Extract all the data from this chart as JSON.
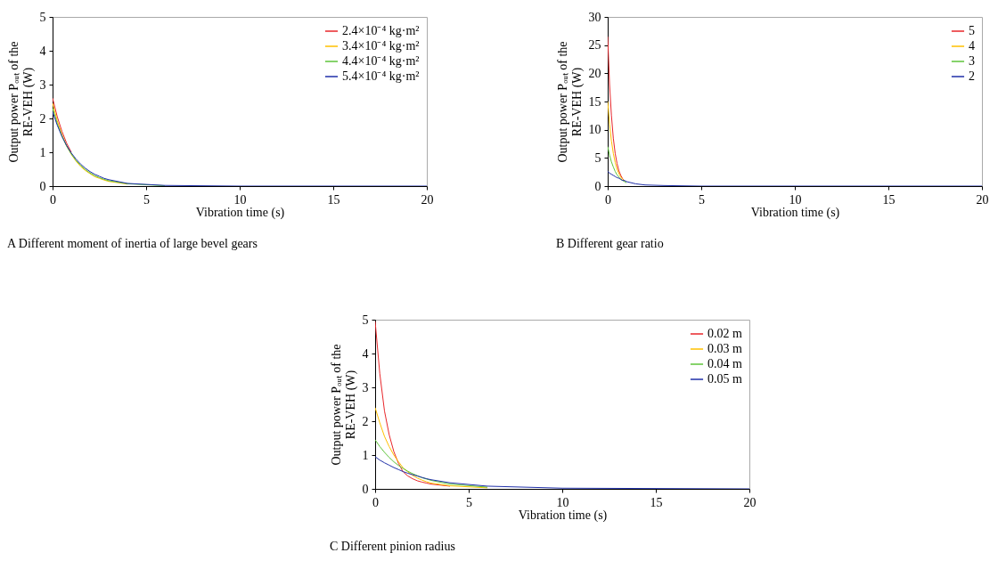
{
  "chart_data": [
    {
      "type": "line",
      "title": "A Different moment of inertia of large bevel gears",
      "xlabel": "Vibration time (s)",
      "ylabel": "Output power Pₒᵤₜ of the RE-VEH (W)",
      "xlim": [
        0,
        20
      ],
      "ylim": [
        0,
        5
      ],
      "xticks": [
        0,
        5,
        10,
        15,
        20
      ],
      "yticks": [
        0,
        1,
        2,
        3,
        4,
        5
      ],
      "grid": false,
      "legend": "top right",
      "series": [
        {
          "name": "2.4×10⁻⁴ kg·m²",
          "color": "#e8262a",
          "x": [
            0,
            0.25,
            0.5,
            0.75,
            1
          ],
          "values": [
            2.6,
            2.05,
            1.62,
            1.27,
            1.0
          ]
        },
        {
          "name": "3.4×10⁻⁴ kg·m²",
          "color": "#ffc000",
          "x": [
            0,
            0.25,
            0.5,
            0.75,
            1,
            1.25,
            1.5,
            1.75,
            2,
            2.25,
            2.5,
            2.75,
            3,
            4
          ],
          "values": [
            2.45,
            1.93,
            1.52,
            1.19,
            0.94,
            0.74,
            0.58,
            0.46,
            0.37,
            0.28,
            0.23,
            0.18,
            0.14,
            0.06
          ]
        },
        {
          "name": "4.4×10⁻⁴ kg·m²",
          "color": "#5ec43a",
          "x": [
            0,
            0.25,
            0.5,
            0.75,
            1,
            1.25,
            1.5,
            1.75,
            2,
            2.25,
            2.5,
            2.75,
            3,
            4,
            6
          ],
          "values": [
            2.3,
            1.85,
            1.48,
            1.18,
            0.95,
            0.76,
            0.61,
            0.49,
            0.39,
            0.31,
            0.25,
            0.2,
            0.16,
            0.07,
            0.01
          ]
        },
        {
          "name": "5.4×10⁻⁴ kg·m²",
          "color": "#1f2fa8",
          "x": [
            0,
            0.25,
            0.5,
            0.75,
            1,
            1.25,
            1.5,
            1.75,
            2,
            2.25,
            2.5,
            2.75,
            3,
            4,
            6,
            10,
            20
          ],
          "values": [
            2.2,
            1.8,
            1.47,
            1.2,
            0.98,
            0.8,
            0.65,
            0.53,
            0.43,
            0.35,
            0.29,
            0.23,
            0.19,
            0.08,
            0.02,
            0,
            0
          ]
        }
      ]
    },
    {
      "type": "line",
      "title": "B Different gear ratio",
      "xlabel": "Vibration time (s)",
      "ylabel": "Output power Pₒᵤₜ of the RE-VEH (W)",
      "xlim": [
        0,
        20
      ],
      "ylim": [
        0,
        30
      ],
      "xticks": [
        0,
        5,
        10,
        15,
        20
      ],
      "yticks": [
        0,
        5,
        10,
        15,
        20,
        25,
        30
      ],
      "grid": false,
      "legend": "top right",
      "series": [
        {
          "name": "5",
          "color": "#e8262a",
          "x": [
            0,
            0.1,
            0.2,
            0.3,
            0.4,
            0.5,
            0.6,
            0.7,
            0.8,
            0.9
          ],
          "values": [
            26.5,
            18,
            12.5,
            8.5,
            5.8,
            4,
            2.7,
            1.9,
            1.3,
            0.9
          ]
        },
        {
          "name": "4",
          "color": "#ffc000",
          "x": [
            0,
            0.1,
            0.2,
            0.3,
            0.4,
            0.5,
            0.6,
            0.7,
            0.8,
            0.9
          ],
          "values": [
            15,
            11,
            8,
            5.8,
            4.2,
            3,
            2.2,
            1.6,
            1.2,
            0.9
          ]
        },
        {
          "name": "3",
          "color": "#5ec43a",
          "x": [
            0,
            0.1,
            0.2,
            0.3,
            0.4,
            0.5,
            0.6,
            0.7,
            0.8,
            0.9,
            1.0
          ],
          "values": [
            7,
            5.5,
            4.3,
            3.4,
            2.6,
            2,
            1.6,
            1.2,
            1,
            0.8,
            0.6
          ]
        },
        {
          "name": "2",
          "color": "#1f2fa8",
          "x": [
            0,
            0.1,
            0.2,
            0.3,
            0.4,
            0.5,
            0.6,
            0.7,
            0.8,
            0.9,
            1.0,
            1.5,
            2,
            3,
            5,
            10,
            20
          ],
          "values": [
            2.6,
            2.3,
            2.1,
            1.9,
            1.7,
            1.5,
            1.4,
            1.2,
            1.0,
            1.0,
            0.8,
            0.4,
            0.2,
            0.1,
            0,
            0,
            0
          ]
        }
      ]
    },
    {
      "type": "line",
      "title": "C Different pinion radius",
      "xlabel": "Vibration time (s)",
      "ylabel": "Output power Pₒᵤₜ of the RE-VEH (W)",
      "xlim": [
        0,
        20
      ],
      "ylim": [
        0,
        5
      ],
      "xticks": [
        0,
        5,
        10,
        15,
        20
      ],
      "yticks": [
        0,
        1,
        2,
        3,
        4,
        5
      ],
      "grid": false,
      "legend": "top right",
      "series": [
        {
          "name": "0.02 m",
          "color": "#e8262a",
          "x": [
            0,
            0.25,
            0.5,
            0.75,
            1,
            1.25,
            1.5,
            1.75,
            2,
            2.25,
            2.5,
            2.75,
            3,
            4
          ],
          "values": [
            4.95,
            3.4,
            2.3,
            1.6,
            1.1,
            0.75,
            0.5,
            0.38,
            0.3,
            0.24,
            0.2,
            0.17,
            0.14,
            0.08
          ]
        },
        {
          "name": "0.03 m",
          "color": "#ffc000",
          "x": [
            0,
            0.25,
            0.5,
            0.75,
            1,
            1.25,
            1.5,
            1.75,
            2,
            2.25,
            2.5,
            2.75,
            3,
            4,
            6
          ],
          "values": [
            2.4,
            1.95,
            1.55,
            1.25,
            1.0,
            0.8,
            0.62,
            0.5,
            0.4,
            0.32,
            0.26,
            0.21,
            0.17,
            0.09,
            0.03
          ]
        },
        {
          "name": "0.04 m",
          "color": "#5ec43a",
          "x": [
            0,
            0.25,
            0.5,
            0.75,
            1,
            1.25,
            1.5,
            1.75,
            2,
            2.25,
            2.5,
            2.75,
            3,
            4,
            6
          ],
          "values": [
            1.45,
            1.25,
            1.08,
            0.93,
            0.8,
            0.69,
            0.6,
            0.52,
            0.45,
            0.39,
            0.33,
            0.29,
            0.25,
            0.14,
            0.05
          ]
        },
        {
          "name": "0.05 m",
          "color": "#1f2fa8",
          "x": [
            0,
            0.25,
            0.5,
            0.75,
            1,
            1.25,
            1.5,
            1.75,
            2,
            2.25,
            2.5,
            2.75,
            3,
            4,
            6,
            10,
            20
          ],
          "values": [
            0.95,
            0.85,
            0.77,
            0.7,
            0.63,
            0.57,
            0.51,
            0.46,
            0.42,
            0.38,
            0.34,
            0.3,
            0.27,
            0.18,
            0.08,
            0.02,
            0
          ]
        }
      ]
    }
  ]
}
